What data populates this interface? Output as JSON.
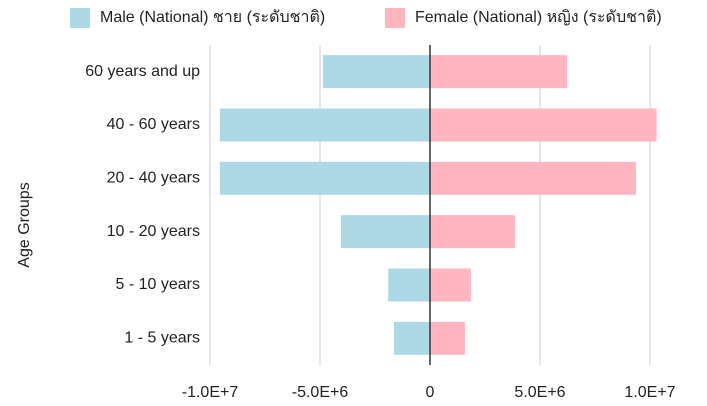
{
  "chart_data": {
    "type": "bar",
    "orientation": "horizontal",
    "stacked": true,
    "ylabel": "Age Groups",
    "categories": [
      "60 years and up",
      "40 - 60 years",
      "20 - 40 years",
      "10 - 20 years",
      "5 - 10 years",
      "1 - 5 years"
    ],
    "series": [
      {
        "name": "Male (National) ชาย (ระดับชาติ)",
        "color": "#add8e6",
        "values": [
          -4860000,
          -9550000,
          -9550000,
          -4050000,
          -1900000,
          -1640000
        ]
      },
      {
        "name": "Female (National) หญิง (ระดับชาติ)",
        "color": "#ffb6c1",
        "values": [
          6230000,
          10300000,
          9360000,
          3860000,
          1860000,
          1590000
        ]
      }
    ],
    "xlim": [
      -10000000,
      10500000
    ],
    "xticks": [
      {
        "value": -10000000,
        "label": "-1.0E+7"
      },
      {
        "value": -5000000,
        "label": "-5.0E+6"
      },
      0,
      {
        "value": 5000000,
        "label": "5.0E+6"
      },
      {
        "value": 10000000,
        "label": "1.0E+7"
      }
    ],
    "grid": true,
    "legend": "top"
  }
}
